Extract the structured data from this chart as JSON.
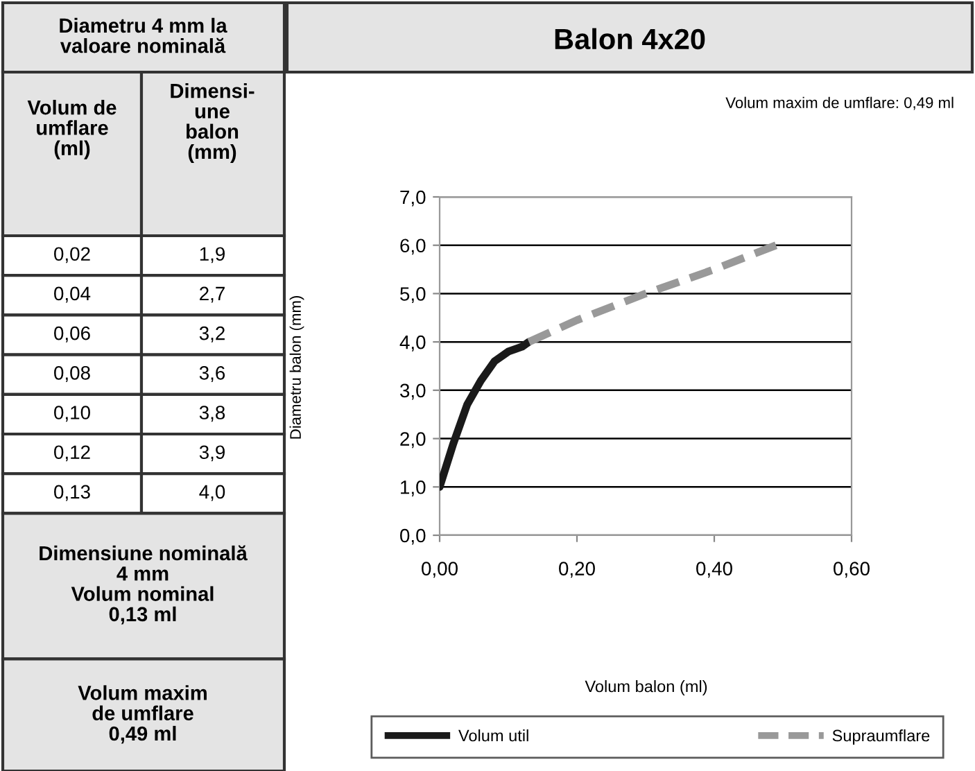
{
  "chart_data": {
    "type": "line",
    "title": "Balon 4x20",
    "annotations": [
      "Volum maxim de umflare: 0,49 ml",
      "Diametru 4 mm la\nvaloare nominală",
      "Volum de\numflare\n(ml)",
      "Dimensi-\nune\nbalon\n(mm)",
      "0,02",
      "1,9",
      "0,04",
      "2,7",
      "0,06",
      "3,2",
      "0,08",
      "3,6",
      "0,10",
      "3,8",
      "0,12",
      "3,9",
      "0,13",
      "4,0",
      "Dimensiune nominală\n4 mm\nVolum nominal\n0,13 ml",
      "Volum maxim\nde umflare\n0,49 ml",
      "Diametru balon (mm)",
      "Volum balon (ml)"
    ],
    "xlim": [
      0,
      0.6
    ],
    "xticks": [
      {
        "value": 0,
        "label": "0,00"
      },
      {
        "value": 0.2,
        "label": "0,20"
      },
      {
        "value": 0.4,
        "label": "0,40"
      },
      {
        "value": 0.6,
        "label": "0,60"
      }
    ],
    "ylim": [
      0,
      7
    ],
    "yticks": [
      {
        "value": 0,
        "label": "0,0"
      },
      {
        "value": 1,
        "label": "1,0"
      },
      {
        "value": 2,
        "label": "2,0"
      },
      {
        "value": 3,
        "label": "3,0"
      },
      {
        "value": 4,
        "label": "4,0"
      },
      {
        "value": 5,
        "label": "5,0"
      },
      {
        "value": 6,
        "label": "6,0"
      },
      {
        "value": 7,
        "label": "7,0"
      }
    ],
    "grid": "y",
    "legend": "bottom",
    "series": [
      {
        "name": "Volum util",
        "color": "#1a1a1a",
        "line_style": "solid",
        "x": [
          0,
          0.02,
          0.04,
          0.06,
          0.08,
          0.1,
          0.12,
          0.13
        ],
        "values": [
          1.0,
          1.9,
          2.7,
          3.2,
          3.6,
          3.8,
          3.9,
          4.0
        ]
      },
      {
        "name": "Supraumflare",
        "color": "#999999",
        "line_style": "dashed",
        "x": [
          0.13,
          0.2,
          0.3,
          0.4,
          0.49
        ],
        "values": [
          4.0,
          4.45,
          5.0,
          5.5,
          6.0
        ]
      }
    ]
  }
}
